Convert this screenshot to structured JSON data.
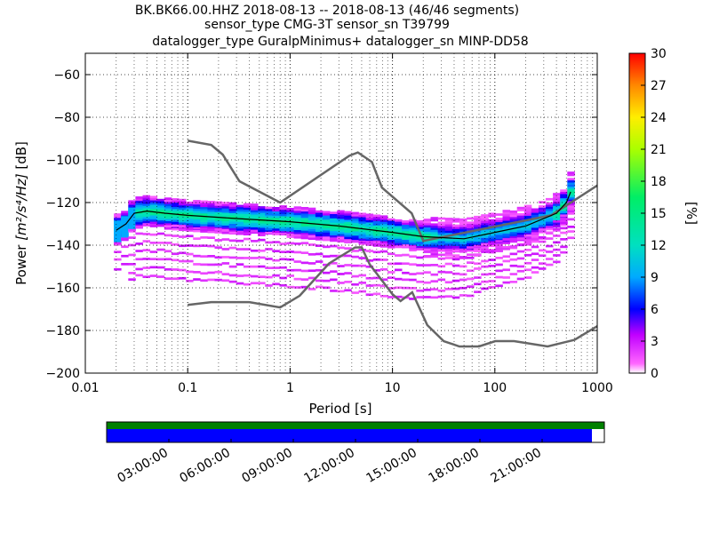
{
  "title_lines": [
    "BK.BK66.00.HHZ   2018-08-13 -- 2018-08-13  (46/46 segments)",
    "sensor_type CMG-3T sensor_sn T39799",
    "datalogger_type GuralpMinimus+ datalogger_sn MINP-DD58"
  ],
  "chart_data": {
    "type": "heatmap",
    "xlabel": "Period [s]",
    "ylabel_prefix": "Power ",
    "ylabel_math": "[m²/s⁴/Hz]",
    "ylabel_suffix": " [dB]",
    "x_scale": "log",
    "xlim": [
      0.01,
      1000
    ],
    "ylim": [
      -200,
      -50
    ],
    "x_ticks": [
      0.01,
      0.1,
      1,
      10,
      100,
      1000
    ],
    "x_tick_labels": [
      "0.01",
      "0.1",
      "1",
      "10",
      "100",
      "1000"
    ],
    "y_ticks": [
      -200,
      -180,
      -160,
      -140,
      -120,
      -100,
      -80,
      -60
    ],
    "y_tick_labels": [
      "−200",
      "−180",
      "−160",
      "−140",
      "−120",
      "−100",
      "−80",
      "−60"
    ],
    "grid": true,
    "colorbar": {
      "label": "[%]",
      "range": [
        0,
        30
      ],
      "ticks": [
        0,
        3,
        6,
        9,
        12,
        15,
        18,
        21,
        24,
        27,
        30
      ],
      "tick_labels": [
        "0",
        "3",
        "6",
        "9",
        "12",
        "15",
        "18",
        "21",
        "24",
        "27",
        "30"
      ]
    },
    "model_color": "#666666",
    "nhnm": [
      [
        0.1,
        -91
      ],
      [
        0.17,
        -93
      ],
      [
        0.22,
        -97.5
      ],
      [
        0.32,
        -110
      ],
      [
        0.8,
        -120
      ],
      [
        3.8,
        -98
      ],
      [
        4.6,
        -96.5
      ],
      [
        6.3,
        -101
      ],
      [
        7.9,
        -113
      ],
      [
        15.4,
        -125
      ],
      [
        20,
        -138
      ],
      [
        354,
        -126
      ],
      [
        1000,
        -112
      ]
    ],
    "nlnm": [
      [
        0.1,
        -168
      ],
      [
        0.17,
        -166.7
      ],
      [
        0.4,
        -166.7
      ],
      [
        0.8,
        -169.2
      ],
      [
        1.24,
        -163.7
      ],
      [
        2.4,
        -148.6
      ],
      [
        4.3,
        -141.1
      ],
      [
        5,
        -141
      ],
      [
        6,
        -149
      ],
      [
        10,
        -163
      ],
      [
        12,
        -166.2
      ],
      [
        15.6,
        -162.1
      ],
      [
        21.9,
        -177.5
      ],
      [
        31.6,
        -185
      ],
      [
        45,
        -187.5
      ],
      [
        70,
        -187.5
      ],
      [
        101,
        -185
      ],
      [
        154,
        -185
      ],
      [
        328,
        -187.5
      ],
      [
        600,
        -184.4
      ],
      [
        1000,
        -178
      ]
    ],
    "psd_mode": [
      [
        0.02,
        -133
      ],
      [
        0.025,
        -130
      ],
      [
        0.03,
        -125
      ],
      [
        0.04,
        -124
      ],
      [
        0.06,
        -125
      ],
      [
        0.1,
        -126
      ],
      [
        0.3,
        -127.5
      ],
      [
        1,
        -129
      ],
      [
        3,
        -131
      ],
      [
        10,
        -134
      ],
      [
        20,
        -136
      ],
      [
        50,
        -137
      ],
      [
        100,
        -134
      ],
      [
        200,
        -131
      ],
      [
        400,
        -125
      ],
      [
        500,
        -120
      ],
      [
        550,
        -115
      ]
    ],
    "psd_segments": 46,
    "timeline": {
      "tick_labels": [
        "03:00:00",
        "06:00:00",
        "09:00:00",
        "12:00:00",
        "15:00:00",
        "18:00:00",
        "21:00:00"
      ],
      "tick_hours": [
        3,
        6,
        9,
        12,
        15,
        18,
        21
      ],
      "hours": 24,
      "data_coverage_end_hour": 23.4,
      "gap_coverage_end_hour": 24,
      "data_color": "#0000ff",
      "gap_color": "#008000"
    }
  }
}
